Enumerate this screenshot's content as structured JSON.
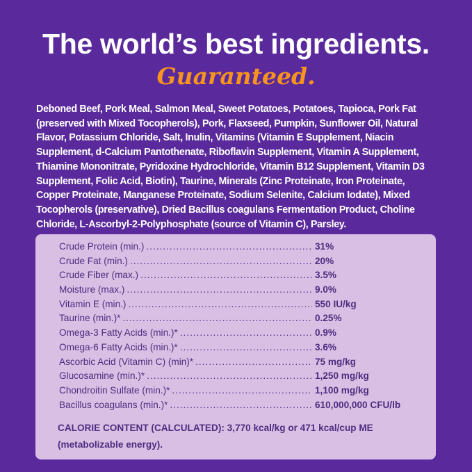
{
  "title": "The world’s best ingredients.",
  "subtitle": "Guaranteed.",
  "ingredients": "Deboned Beef, Pork Meal, Salmon Meal, Sweet Potatoes, Potatoes, Tapioca, Pork Fat (preserved with Mixed Tocopherols), Pork, Flaxseed, Pumpkin, Sunflower Oil, Natural Flavor, Potassium Chloride, Salt, Inulin, Vitamins (Vitamin E Supplement, Niacin Supplement, d-Calcium Pantothenate, Riboflavin Supplement, Vitamin A Supplement, Thiamine Mononitrate, Pyridoxine Hydrochloride, Vitamin B12 Supplement, Vitamin D3 Supplement, Folic Acid, Biotin), Taurine, Minerals (Zinc Proteinate, Iron Proteinate, Copper Proteinate, Manganese Proteinate, Sodium Selenite, Calcium Iodate), Mixed Tocopherols (preservative), Dried Bacillus coagulans Fermentation Product, Choline Chloride, L-Ascorbyl-2-Polyphosphate (source of Vitamin C), Parsley.",
  "analysis": [
    {
      "label": "Crude Protein (min.)",
      "value": "31%"
    },
    {
      "label": "Crude Fat (min.)",
      "value": "20%"
    },
    {
      "label": "Crude Fiber (max.)",
      "value": "3.5%"
    },
    {
      "label": "Moisture (max.)",
      "value": "9.0%"
    },
    {
      "label": "Vitamin E (min.)",
      "value": "550 IU/kg"
    },
    {
      "label": "Taurine (min.)*",
      "value": "0.25%"
    },
    {
      "label": "Omega-3 Fatty Acids (min.)*",
      "value": "0.9%"
    },
    {
      "label": "Omega-6 Fatty Acids (min.)*",
      "value": "3.6%"
    },
    {
      "label": "Ascorbic Acid (Vitamin C) (min)*",
      "value": "75 mg/kg"
    },
    {
      "label": "Glucosamine (min.)*",
      "value": "1,250 mg/kg"
    },
    {
      "label": "Chondroitin Sulfate (min.)*",
      "value": "1,100 mg/kg"
    },
    {
      "label": "Bacillus coagulans (min.)*",
      "value": "610,000,000 CFU/lb"
    }
  ],
  "calorie_content": "CALORIE CONTENT (CALCULATED): 3,770 kcal/kg or 471 kcal/cup ME (metabolizable energy).",
  "colors": {
    "background": "#5a2a9c",
    "accent": "#f7941d",
    "panel": "#d9bfe4",
    "panel_text": "#4d2d7f"
  }
}
